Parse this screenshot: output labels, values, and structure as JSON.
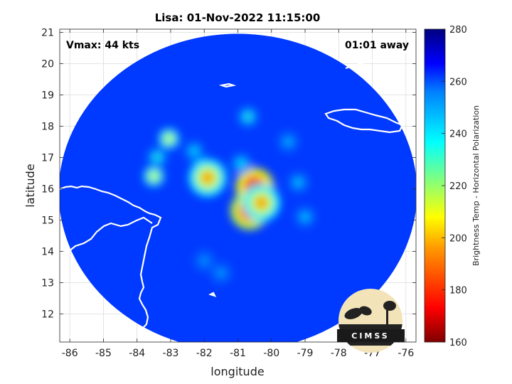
{
  "chart_data": {
    "type": "heatmap",
    "title": "Lisa: 01-Nov-2022 11:15:00",
    "xlabel": "longitude",
    "ylabel": "latitude",
    "xlim": [
      -86.3,
      -75.7
    ],
    "ylim": [
      11.1,
      21.1
    ],
    "x_ticks": [
      -86,
      -85,
      -84,
      -83,
      -82,
      -81,
      -80,
      -79,
      -78,
      -77,
      -76
    ],
    "y_ticks": [
      12,
      13,
      14,
      15,
      16,
      17,
      18,
      19,
      20,
      21
    ],
    "grid": true,
    "annotations": {
      "vmax": "Vmax: 44 kts",
      "time_away": "01:01 away"
    },
    "colorbar": {
      "label": "Brightness Temp - Horizontal Polarization",
      "min": 160,
      "max": 280,
      "ticks": [
        160,
        180,
        200,
        220,
        240,
        260,
        280
      ]
    },
    "swath": {
      "center_lon": -81.0,
      "center_lat": 16.0,
      "background_value": 262
    },
    "features": [
      {
        "lon": -80.5,
        "lat": 16.05,
        "value": 165
      },
      {
        "lon": -80.65,
        "lat": 15.3,
        "value": 170
      },
      {
        "lon": -80.3,
        "lat": 15.55,
        "value": 195
      },
      {
        "lon": -81.9,
        "lat": 16.35,
        "value": 195
      },
      {
        "lon": -83.05,
        "lat": 17.6,
        "value": 212
      },
      {
        "lon": -83.5,
        "lat": 16.4,
        "value": 212
      },
      {
        "lon": -83.4,
        "lat": 17.0,
        "value": 232
      },
      {
        "lon": -82.3,
        "lat": 17.2,
        "value": 238
      },
      {
        "lon": -80.7,
        "lat": 18.3,
        "value": 232
      },
      {
        "lon": -79.5,
        "lat": 17.5,
        "value": 242
      },
      {
        "lon": -80.9,
        "lat": 16.8,
        "value": 236
      },
      {
        "lon": -79.2,
        "lat": 16.2,
        "value": 240
      },
      {
        "lon": -79.0,
        "lat": 15.1,
        "value": 240
      },
      {
        "lon": -81.5,
        "lat": 13.3,
        "value": 245
      },
      {
        "lon": -82.0,
        "lat": 13.7,
        "value": 246
      }
    ]
  },
  "logo": {
    "text": "CIMSS"
  }
}
